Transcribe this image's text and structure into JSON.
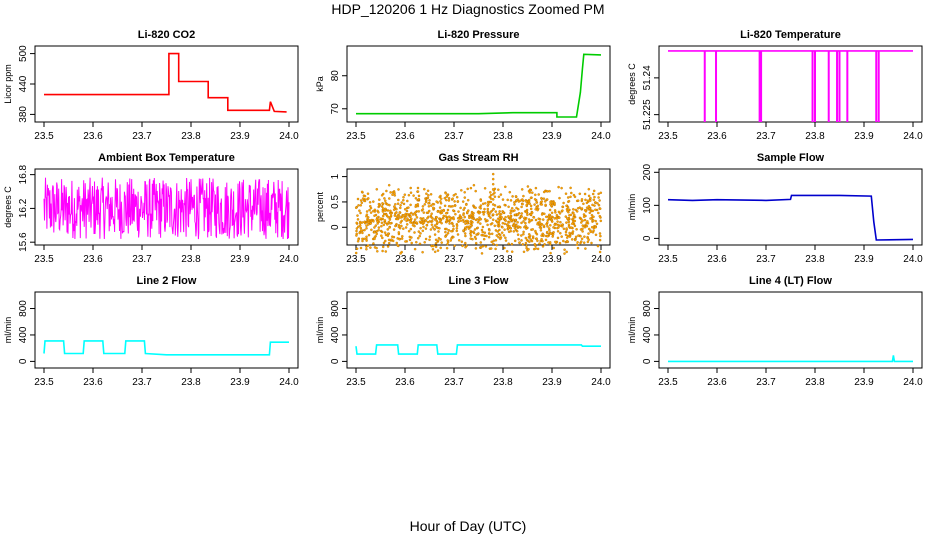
{
  "figure": {
    "title": "HDP_120206  1 Hz Diagnostics Zoomed PM",
    "xlabel": "Hour of Day (UTC)"
  },
  "chart_data": [
    {
      "type": "line",
      "title": "Li-820 CO2",
      "ylabel": "Licor ppm",
      "color": "#ff0000",
      "xlim": [
        23.5,
        24.0
      ],
      "ylim": [
        365,
        515
      ],
      "yticks": [
        380,
        440,
        500
      ],
      "xticks": [
        23.5,
        23.6,
        23.7,
        23.8,
        23.9,
        24.0
      ],
      "series": [
        {
          "name": "CO2",
          "x": [
            23.5,
            23.755,
            23.755,
            23.775,
            23.775,
            23.835,
            23.835,
            23.875,
            23.875,
            23.96,
            23.962,
            23.97,
            23.995
          ],
          "y": [
            419,
            419,
            500,
            500,
            445,
            445,
            413,
            413,
            388,
            388,
            405,
            386,
            385
          ]
        }
      ]
    },
    {
      "type": "line",
      "title": "Li-820 Pressure",
      "ylabel": "kPa",
      "color": "#00cc00",
      "xlim": [
        23.5,
        24.0
      ],
      "ylim": [
        66,
        89
      ],
      "yticks": [
        70,
        80
      ],
      "xticks": [
        23.5,
        23.6,
        23.7,
        23.8,
        23.9,
        24.0
      ],
      "series": [
        {
          "name": "Pressure",
          "x": [
            23.5,
            23.75,
            23.82,
            23.91,
            23.91,
            23.95,
            23.958,
            23.962,
            23.965,
            24.0
          ],
          "y": [
            68.5,
            68.5,
            68.8,
            68.8,
            67.5,
            67.5,
            75,
            82,
            86.5,
            86.3
          ]
        }
      ]
    },
    {
      "type": "line",
      "title": "Li-820 Temperature",
      "ylabel": "degrees C",
      "color": "#ff00ff",
      "xlim": [
        23.5,
        24.0
      ],
      "ylim": [
        51.222,
        51.253
      ],
      "yticks": [
        51.225,
        51.24
      ],
      "xticks": [
        23.5,
        23.6,
        23.7,
        23.8,
        23.9,
        24.0
      ],
      "series": [
        {
          "name": "Temperature",
          "baseline": 51.251,
          "low": 51.222,
          "dip_x": [
            23.575,
            23.598,
            23.687,
            23.69,
            23.795,
            23.8,
            23.828,
            23.845,
            23.85,
            23.866,
            23.925,
            23.93
          ]
        }
      ]
    },
    {
      "type": "line",
      "title": "Ambient Box Temperature",
      "ylabel": "degrees C",
      "color": "#ff00ff",
      "xlim": [
        23.5,
        24.0
      ],
      "ylim": [
        15.55,
        16.9
      ],
      "yticks": [
        15.6,
        16.2,
        16.8
      ],
      "xticks": [
        23.5,
        23.6,
        23.7,
        23.8,
        23.9,
        24.0
      ],
      "series": [
        {
          "name": "Ambient",
          "mean": 16.15,
          "noise_range": [
            15.65,
            16.75
          ]
        }
      ]
    },
    {
      "type": "scatter",
      "title": "Gas Stream RH",
      "ylabel": "percent",
      "color": "#ffa500",
      "xlim": [
        23.5,
        24.0
      ],
      "ylim": [
        -0.35,
        1.15
      ],
      "yticks": [
        0.0,
        0.5,
        1.0
      ],
      "xticks": [
        23.5,
        23.6,
        23.7,
        23.8,
        23.9,
        24.0
      ],
      "series": [
        {
          "name": "RH",
          "mean": 0.15,
          "noise_range": [
            -0.3,
            0.65
          ],
          "peak": {
            "x": 23.78,
            "y": 1.05
          }
        }
      ]
    },
    {
      "type": "line",
      "title": "Sample Flow",
      "ylabel": "ml/min",
      "color": "#0000cc",
      "xlim": [
        23.5,
        24.0
      ],
      "ylim": [
        -20,
        210
      ],
      "yticks": [
        0,
        100,
        200
      ],
      "xticks": [
        23.5,
        23.6,
        23.7,
        23.8,
        23.9,
        24.0
      ],
      "series": [
        {
          "name": "Sample",
          "x": [
            23.5,
            23.55,
            23.6,
            23.7,
            23.75,
            23.752,
            23.85,
            23.915,
            23.92,
            23.925,
            24.0
          ],
          "y": [
            117,
            115,
            117,
            115,
            118,
            130,
            130,
            128,
            50,
            -5,
            -3
          ]
        }
      ]
    },
    {
      "type": "line",
      "title": "Line 2 Flow",
      "ylabel": "ml/min",
      "color": "#00ffff",
      "xlim": [
        23.5,
        24.0
      ],
      "ylim": [
        -100,
        1050
      ],
      "yticks": [
        0,
        400,
        800
      ],
      "xticks": [
        23.5,
        23.6,
        23.7,
        23.8,
        23.9,
        24.0
      ],
      "series": [
        {
          "name": "Line 2",
          "x": [
            23.5,
            23.502,
            23.54,
            23.542,
            23.58,
            23.582,
            23.62,
            23.622,
            23.665,
            23.667,
            23.705,
            23.707,
            23.75,
            23.96,
            23.962,
            24.0
          ],
          "y": [
            120,
            310,
            310,
            120,
            120,
            310,
            310,
            120,
            120,
            310,
            310,
            120,
            100,
            100,
            290,
            290
          ]
        }
      ]
    },
    {
      "type": "line",
      "title": "Line 3 Flow",
      "ylabel": "ml/min",
      "color": "#00ffff",
      "xlim": [
        23.5,
        24.0
      ],
      "ylim": [
        -100,
        1050
      ],
      "yticks": [
        0,
        400,
        800
      ],
      "xticks": [
        23.5,
        23.6,
        23.7,
        23.8,
        23.9,
        24.0
      ],
      "series": [
        {
          "name": "Line 3",
          "x": [
            23.5,
            23.502,
            23.54,
            23.542,
            23.585,
            23.587,
            23.625,
            23.627,
            23.665,
            23.667,
            23.705,
            23.707,
            23.96,
            23.962,
            24.0
          ],
          "y": [
            230,
            110,
            110,
            250,
            250,
            110,
            110,
            250,
            250,
            110,
            110,
            250,
            250,
            230,
            230
          ]
        }
      ]
    },
    {
      "type": "line",
      "title": "Line 4 (LT) Flow",
      "ylabel": "ml/min",
      "color": "#00ffff",
      "xlim": [
        23.5,
        24.0
      ],
      "ylim": [
        -100,
        1050
      ],
      "yticks": [
        0,
        400,
        800
      ],
      "xticks": [
        23.5,
        23.6,
        23.7,
        23.8,
        23.9,
        24.0
      ],
      "series": [
        {
          "name": "Line 4",
          "x": [
            23.5,
            23.958,
            23.96,
            23.962,
            24.0
          ],
          "y": [
            0,
            0,
            90,
            0,
            0
          ]
        }
      ]
    }
  ]
}
